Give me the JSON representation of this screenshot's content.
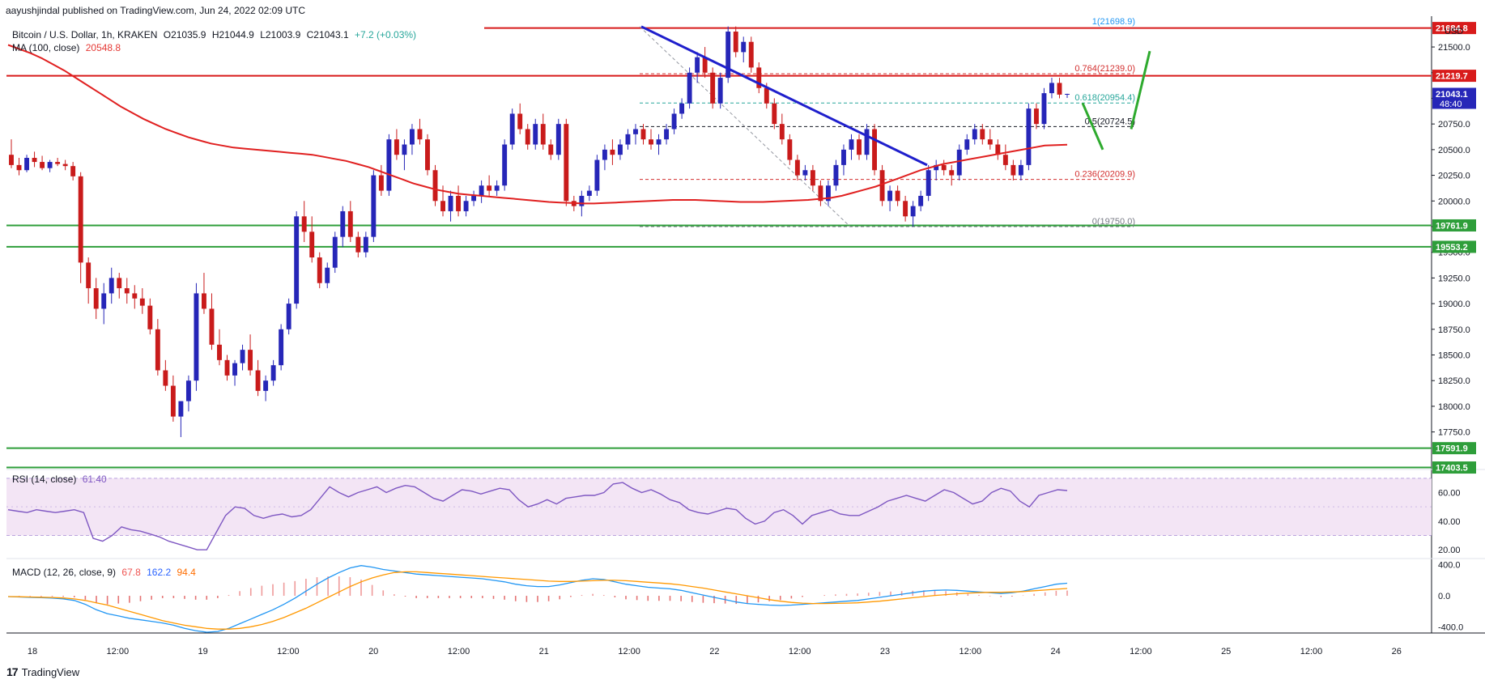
{
  "header": {
    "attribution": "aayushjindal published on TradingView.com, Jun 24, 2022 02:09 UTC",
    "symbol": "Bitcoin / U.S. Dollar, 1h, KRAKEN",
    "ohlc": {
      "o": "O21035.9",
      "h": "H21044.9",
      "l": "L21003.9",
      "c": "C21043.1",
      "chg": "+7.2 (+0.03%)"
    },
    "ma_label": "MA (100, close)",
    "ma_value": "20548.8",
    "rsi_label": "RSI (14, close)",
    "rsi_value": "61.40",
    "macd_label": "MACD (12, 26, close, 9)",
    "macd_values": [
      "67.8",
      "162.2",
      "94.4"
    ]
  },
  "footer": {
    "brand": "TradingView",
    "logo_mark": "17"
  },
  "colors": {
    "up": "#2626b8",
    "down": "#c91b1b",
    "ma": "#e02020",
    "resistance": "#d81b1b",
    "support": "#2e9e3a",
    "trend": "#1f1fcc",
    "rsi": "#7e57c2",
    "rsi_band": "#f3e5f5",
    "macd": "#2196f3",
    "signal": "#ff9800",
    "hist_pos": "#ef9a9a",
    "hist_neg": "#e57373",
    "projection": "#2eaa2e",
    "fib_red": "#d32f2f",
    "fib_teal": "#26a69a",
    "fib_gray": "#787b86"
  },
  "chart_data": {
    "type": "candlestick",
    "title": "Bitcoin / U.S. Dollar, 1h, KRAKEN",
    "y_axis_unit": "USD",
    "ylim": [
      17400,
      21800
    ],
    "y_ticks": [
      17750,
      18000,
      18250,
      18500,
      18750,
      19000,
      19250,
      19500,
      19750,
      20000,
      20250,
      20500,
      20750,
      21000,
      21250,
      21500
    ],
    "x_ticks": [
      "18",
      "12:00",
      "19",
      "12:00",
      "20",
      "12:00",
      "21",
      "12:00",
      "22",
      "12:00",
      "23",
      "12:00",
      "24",
      "12:00",
      "25",
      "12:00",
      "26"
    ],
    "price_labels": [
      {
        "value": "21684.8",
        "price": 21684.8,
        "color": "#d81b1b"
      },
      {
        "value": "21219.7",
        "price": 21219.7,
        "color": "#d81b1b"
      },
      {
        "value": "21043.1",
        "price": 21043.1,
        "color": "#2626b8",
        "sub": "48:40"
      },
      {
        "value": "19761.9",
        "price": 19761.9,
        "color": "#2e9e3a"
      },
      {
        "value": "19553.2",
        "price": 19553.2,
        "color": "#2e9e3a"
      },
      {
        "value": "17591.9",
        "price": 17591.9,
        "color": "#2e9e3a"
      },
      {
        "value": "17403.5",
        "price": 17403.5,
        "color": "#2e9e3a"
      }
    ],
    "fib_levels": [
      {
        "label": "1(21698.9)",
        "price": 21698.9,
        "color": "#2196f3"
      },
      {
        "label": "0.764(21239.0)",
        "price": 21239.0,
        "color": "#d32f2f"
      },
      {
        "label": "0.618(20954.4)",
        "price": 20954.4,
        "color": "#26a69a"
      },
      {
        "label": "0.5(20724.5)",
        "price": 20724.5,
        "color": "#131722"
      },
      {
        "label": "0.236(20209.9)",
        "price": 20209.9,
        "color": "#d32f2f"
      },
      {
        "label": "0(19750.0)",
        "price": 19750.0,
        "color": "#787b86"
      }
    ],
    "resistance_lines": [
      21684.8,
      21219.7
    ],
    "support_lines": [
      19761.9,
      19553.2,
      17591.9,
      17403.5
    ],
    "candles": [
      [
        20450,
        20600,
        20320,
        20350
      ],
      [
        20350,
        20420,
        20250,
        20300
      ],
      [
        20300,
        20450,
        20280,
        20420
      ],
      [
        20420,
        20480,
        20330,
        20380
      ],
      [
        20380,
        20440,
        20300,
        20320
      ],
      [
        20320,
        20400,
        20280,
        20380
      ],
      [
        20380,
        20420,
        20340,
        20360
      ],
      [
        20360,
        20400,
        20300,
        20340
      ],
      [
        20340,
        20380,
        20200,
        20240
      ],
      [
        20240,
        20280,
        19200,
        19400
      ],
      [
        19400,
        19450,
        19000,
        19150
      ],
      [
        19150,
        19250,
        18850,
        18950
      ],
      [
        18950,
        19200,
        18800,
        19100
      ],
      [
        19100,
        19350,
        19000,
        19250
      ],
      [
        19250,
        19300,
        19050,
        19150
      ],
      [
        19150,
        19250,
        19000,
        19100
      ],
      [
        19100,
        19180,
        18950,
        19050
      ],
      [
        19050,
        19150,
        18900,
        18980
      ],
      [
        18980,
        19050,
        18700,
        18750
      ],
      [
        18750,
        18850,
        18300,
        18350
      ],
      [
        18350,
        18450,
        18150,
        18200
      ],
      [
        18200,
        18300,
        17850,
        17900
      ],
      [
        17900,
        18050,
        17700,
        18050
      ],
      [
        18050,
        18300,
        17950,
        18250
      ],
      [
        18250,
        19200,
        18150,
        19100
      ],
      [
        19100,
        19300,
        18900,
        18950
      ],
      [
        18950,
        19100,
        18550,
        18600
      ],
      [
        18600,
        18750,
        18400,
        18450
      ],
      [
        18450,
        18500,
        18250,
        18300
      ],
      [
        18300,
        18450,
        18200,
        18420
      ],
      [
        18420,
        18600,
        18350,
        18550
      ],
      [
        18550,
        18700,
        18300,
        18350
      ],
      [
        18350,
        18450,
        18100,
        18150
      ],
      [
        18150,
        18300,
        18050,
        18250
      ],
      [
        18250,
        18450,
        18200,
        18400
      ],
      [
        18400,
        18800,
        18350,
        18750
      ],
      [
        18750,
        19050,
        18700,
        19000
      ],
      [
        19000,
        19900,
        18950,
        19850
      ],
      [
        19850,
        20000,
        19600,
        19700
      ],
      [
        19700,
        19850,
        19400,
        19450
      ],
      [
        19450,
        19500,
        19150,
        19200
      ],
      [
        19200,
        19400,
        19150,
        19350
      ],
      [
        19350,
        19700,
        19300,
        19650
      ],
      [
        19650,
        19950,
        19550,
        19900
      ],
      [
        19900,
        20000,
        19600,
        19650
      ],
      [
        19650,
        19700,
        19450,
        19500
      ],
      [
        19500,
        19700,
        19450,
        19650
      ],
      [
        19650,
        20300,
        19600,
        20250
      ],
      [
        20250,
        20350,
        20050,
        20100
      ],
      [
        20100,
        20650,
        20050,
        20600
      ],
      [
        20600,
        20700,
        20400,
        20450
      ],
      [
        20450,
        20600,
        20300,
        20550
      ],
      [
        20550,
        20750,
        20450,
        20700
      ],
      [
        20700,
        20800,
        20550,
        20600
      ],
      [
        20600,
        20650,
        20250,
        20300
      ],
      [
        20300,
        20350,
        19950,
        20000
      ],
      [
        20000,
        20150,
        19850,
        19900
      ],
      [
        19900,
        20100,
        19800,
        20050
      ],
      [
        20050,
        20150,
        19850,
        19900
      ],
      [
        19900,
        20050,
        19850,
        20000
      ],
      [
        20000,
        20100,
        19950,
        20050
      ],
      [
        20050,
        20200,
        19980,
        20150
      ],
      [
        20150,
        20250,
        20050,
        20100
      ],
      [
        20100,
        20200,
        20050,
        20150
      ],
      [
        20150,
        20600,
        20100,
        20550
      ],
      [
        20550,
        20900,
        20500,
        20850
      ],
      [
        20850,
        20950,
        20650,
        20700
      ],
      [
        20700,
        20750,
        20500,
        20550
      ],
      [
        20550,
        20800,
        20500,
        20750
      ],
      [
        20750,
        20850,
        20500,
        20550
      ],
      [
        20550,
        20600,
        20400,
        20450
      ],
      [
        20450,
        20800,
        20400,
        20750
      ],
      [
        20750,
        20800,
        19950,
        20000
      ],
      [
        20000,
        20050,
        19900,
        19950
      ],
      [
        19950,
        20100,
        19850,
        20050
      ],
      [
        20050,
        20150,
        20000,
        20100
      ],
      [
        20100,
        20450,
        20050,
        20400
      ],
      [
        20400,
        20550,
        20300,
        20500
      ],
      [
        20500,
        20600,
        20350,
        20450
      ],
      [
        20450,
        20600,
        20400,
        20550
      ],
      [
        20550,
        20700,
        20500,
        20650
      ],
      [
        20650,
        20750,
        20550,
        20700
      ],
      [
        20700,
        20750,
        20550,
        20600
      ],
      [
        20600,
        20700,
        20500,
        20550
      ],
      [
        20550,
        20650,
        20450,
        20600
      ],
      [
        20600,
        20750,
        20550,
        20700
      ],
      [
        20700,
        20900,
        20650,
        20850
      ],
      [
        20850,
        21000,
        20800,
        20950
      ],
      [
        20950,
        21300,
        20900,
        21250
      ],
      [
        21250,
        21450,
        21150,
        21400
      ],
      [
        21400,
        21500,
        21200,
        21250
      ],
      [
        21250,
        21300,
        20900,
        20950
      ],
      [
        20950,
        21250,
        20900,
        21200
      ],
      [
        21200,
        21700,
        21150,
        21650
      ],
      [
        21650,
        21700,
        21400,
        21450
      ],
      [
        21450,
        21600,
        21350,
        21550
      ],
      [
        21550,
        21600,
        21250,
        21300
      ],
      [
        21300,
        21350,
        21050,
        21100
      ],
      [
        21100,
        21150,
        20900,
        20950
      ],
      [
        20950,
        21000,
        20700,
        20750
      ],
      [
        20750,
        20850,
        20550,
        20600
      ],
      [
        20600,
        20650,
        20350,
        20400
      ],
      [
        20400,
        20450,
        20200,
        20250
      ],
      [
        20250,
        20350,
        20200,
        20300
      ],
      [
        20300,
        20350,
        20100,
        20150
      ],
      [
        20150,
        20200,
        19950,
        20000
      ],
      [
        20000,
        20200,
        19950,
        20150
      ],
      [
        20150,
        20400,
        20100,
        20350
      ],
      [
        20350,
        20550,
        20250,
        20500
      ],
      [
        20500,
        20650,
        20400,
        20600
      ],
      [
        20600,
        20650,
        20400,
        20450
      ],
      [
        20450,
        20750,
        20400,
        20700
      ],
      [
        20700,
        20750,
        20250,
        20300
      ],
      [
        20300,
        20350,
        19950,
        20000
      ],
      [
        20000,
        20150,
        19900,
        20100
      ],
      [
        20100,
        20150,
        19950,
        20000
      ],
      [
        20000,
        20050,
        19800,
        19850
      ],
      [
        19850,
        20000,
        19750,
        19950
      ],
      [
        19950,
        20100,
        19900,
        20050
      ],
      [
        20050,
        20350,
        20000,
        20300
      ],
      [
        20300,
        20400,
        20200,
        20350
      ],
      [
        20350,
        20400,
        20250,
        20300
      ],
      [
        20300,
        20350,
        20150,
        20250
      ],
      [
        20250,
        20550,
        20200,
        20500
      ],
      [
        20500,
        20650,
        20450,
        20600
      ],
      [
        20600,
        20750,
        20550,
        20700
      ],
      [
        20700,
        20750,
        20550,
        20600
      ],
      [
        20600,
        20700,
        20500,
        20550
      ],
      [
        20550,
        20600,
        20400,
        20450
      ],
      [
        20450,
        20550,
        20300,
        20350
      ],
      [
        20350,
        20400,
        20200,
        20250
      ],
      [
        20250,
        20400,
        20200,
        20350
      ],
      [
        20350,
        20950,
        20300,
        20900
      ],
      [
        20900,
        20950,
        20700,
        20750
      ],
      [
        20750,
        21100,
        20700,
        21050
      ],
      [
        21050,
        21200,
        21000,
        21150
      ],
      [
        21150,
        21200,
        21000,
        21035.9
      ],
      [
        21035.9,
        21044.9,
        21003.9,
        21043.1
      ]
    ],
    "ma": {
      "name": "MA (100, close)",
      "values": [
        21520,
        21480,
        21440,
        21390,
        21330,
        21270,
        21200,
        21130,
        21060,
        20990,
        20920,
        20860,
        20800,
        20750,
        20700,
        20660,
        20620,
        20590,
        20560,
        20540,
        20520,
        20510,
        20500,
        20490,
        20480,
        20470,
        20460,
        20450,
        20430,
        20410,
        20390,
        20360,
        20330,
        20290,
        20250,
        20210,
        20170,
        20140,
        20110,
        20090,
        20070,
        20060,
        20050,
        20040,
        20030,
        20020,
        20010,
        20000,
        19990,
        19985,
        19980,
        19975,
        19975,
        19980,
        19985,
        19990,
        19995,
        20000,
        20005,
        20010,
        20010,
        20010,
        20005,
        20000,
        19995,
        19990,
        19990,
        19990,
        19995,
        20000,
        20005,
        20010,
        20020,
        20030,
        20050,
        20080,
        20110,
        20140,
        20180,
        20220,
        20260,
        20300,
        20330,
        20360,
        20380,
        20400,
        20420,
        20440,
        20460,
        20480,
        20500,
        20520,
        20540,
        20545,
        20548.8
      ]
    },
    "rsi": {
      "name": "RSI (14, close)",
      "ylim": [
        15,
        75
      ],
      "ticks": [
        20,
        40,
        60
      ],
      "band": [
        30,
        70
      ],
      "values": [
        48,
        47,
        46,
        48,
        47,
        46,
        47,
        48,
        46,
        28,
        26,
        30,
        36,
        34,
        33,
        31,
        29,
        26,
        24,
        22,
        20,
        20,
        32,
        44,
        50,
        49,
        44,
        42,
        44,
        45,
        43,
        44,
        48,
        56,
        64,
        60,
        57,
        60,
        62,
        64,
        60,
        63,
        65,
        64,
        60,
        56,
        54,
        58,
        62,
        61,
        59,
        61,
        63,
        62,
        55,
        50,
        52,
        55,
        52,
        56,
        57,
        58,
        58,
        60,
        66,
        67,
        63,
        60,
        62,
        59,
        55,
        53,
        48,
        46,
        45,
        47,
        49,
        48,
        42,
        38,
        40,
        46,
        48,
        44,
        38,
        44,
        46,
        48,
        45,
        44,
        44,
        47,
        50,
        54,
        56,
        58,
        56,
        54,
        58,
        62,
        60,
        56,
        52,
        54,
        60,
        63,
        61,
        54,
        50,
        58,
        60,
        62,
        61.4
      ]
    },
    "macd": {
      "name": "MACD (12, 26, close, 9)",
      "ylim": [
        -480,
        460
      ],
      "ticks": [
        400,
        0,
        -400
      ],
      "macd_values": [
        -10,
        -15,
        -20,
        -25,
        -30,
        -40,
        -60,
        -110,
        -180,
        -230,
        -260,
        -290,
        -310,
        -330,
        -350,
        -380,
        -420,
        -450,
        -470,
        -460,
        -420,
        -360,
        -300,
        -240,
        -180,
        -110,
        -30,
        60,
        150,
        230,
        300,
        360,
        390,
        370,
        340,
        320,
        300,
        280,
        270,
        260,
        250,
        240,
        230,
        220,
        200,
        180,
        150,
        130,
        120,
        120,
        140,
        170,
        200,
        220,
        210,
        180,
        150,
        130,
        110,
        100,
        90,
        70,
        40,
        10,
        -20,
        -50,
        -80,
        -100,
        -110,
        -120,
        -125,
        -120,
        -110,
        -100,
        -90,
        -80,
        -70,
        -60,
        -40,
        -20,
        0,
        20,
        40,
        60,
        70,
        75,
        70,
        60,
        50,
        40,
        30,
        40,
        60,
        90,
        120,
        150,
        162.2
      ],
      "signal_values": [
        -10,
        -12,
        -15,
        -18,
        -22,
        -28,
        -40,
        -60,
        -90,
        -120,
        -160,
        -200,
        -240,
        -280,
        -320,
        -350,
        -380,
        -400,
        -420,
        -430,
        -430,
        -420,
        -400,
        -370,
        -330,
        -280,
        -220,
        -160,
        -90,
        -20,
        50,
        120,
        180,
        230,
        270,
        300,
        310,
        310,
        300,
        290,
        280,
        270,
        260,
        250,
        240,
        230,
        220,
        210,
        200,
        190,
        185,
        185,
        190,
        195,
        200,
        200,
        195,
        185,
        175,
        165,
        155,
        140,
        120,
        100,
        75,
        50,
        25,
        0,
        -25,
        -50,
        -70,
        -85,
        -95,
        -100,
        -100,
        -98,
        -95,
        -90,
        -80,
        -70,
        -55,
        -40,
        -25,
        -10,
        5,
        15,
        25,
        35,
        40,
        45,
        45,
        50,
        55,
        65,
        75,
        85,
        94.4
      ],
      "hist_values": [
        67.8
      ]
    }
  }
}
